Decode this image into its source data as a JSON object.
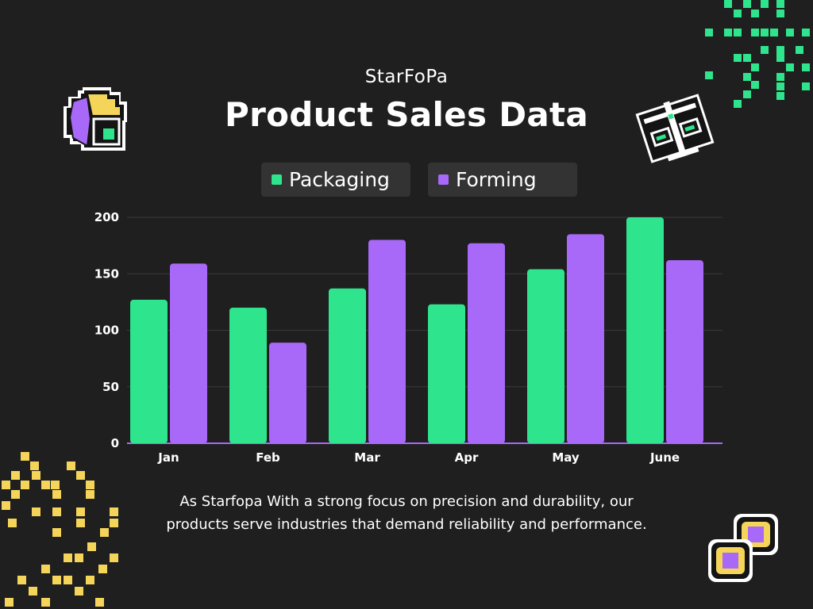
{
  "header": {
    "subtitle": "StarFoPa",
    "title": "Product Sales Data"
  },
  "legend": [
    {
      "label": "Packaging",
      "color": "#2ee48c"
    },
    {
      "label": "Forming",
      "color": "#a868f8"
    }
  ],
  "description": {
    "line1": "As Starfopa  With a strong focus on precision and durability, our",
    "line2": "products serve industries that demand reliability and performance."
  },
  "decorations": [
    "pie-chart-pixel-icon",
    "scale-pixel-icon",
    "coins-pixel-icon",
    "green-pixel-pattern",
    "yellow-pixel-pattern"
  ],
  "chart_data": {
    "type": "bar",
    "categories": [
      "Jan",
      "Feb",
      "Mar",
      "Apr",
      "May",
      "June"
    ],
    "series": [
      {
        "name": "Packaging",
        "values": [
          127,
          120,
          137,
          123,
          154,
          200
        ],
        "color": "#2ee48c"
      },
      {
        "name": "Forming",
        "values": [
          159,
          89,
          180,
          177,
          185,
          162
        ],
        "color": "#a868f8"
      }
    ],
    "yticks": [
      0,
      50,
      100,
      150,
      200
    ],
    "ylim": [
      0,
      200
    ],
    "grid": true,
    "legend_position": "top-center",
    "title": "Product Sales Data",
    "xlabel": "",
    "ylabel": ""
  }
}
